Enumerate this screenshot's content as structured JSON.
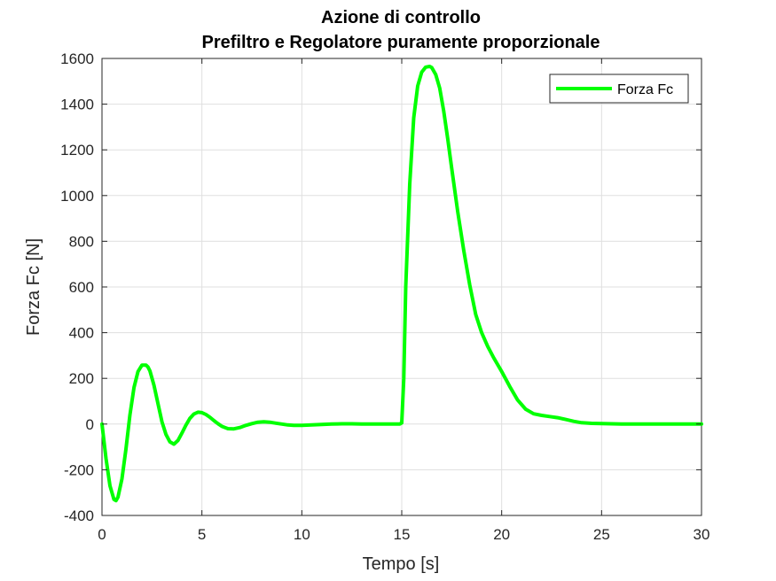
{
  "chart_data": {
    "type": "line",
    "title": "Azione di controllo",
    "subtitle": "Prefiltro e Regolatore puramente proporzionale",
    "xlabel": "Tempo [s]",
    "ylabel": "Forza Fc [N]",
    "xlim": [
      0,
      30
    ],
    "ylim": [
      -400,
      1600
    ],
    "xticks": [
      0,
      5,
      10,
      15,
      20,
      25,
      30
    ],
    "yticks": [
      -400,
      -200,
      0,
      200,
      400,
      600,
      800,
      1000,
      1200,
      1400,
      1600
    ],
    "grid": true,
    "legend": {
      "position": "top-right",
      "entries": [
        "Forza Fc"
      ]
    },
    "series": [
      {
        "name": "Forza Fc",
        "color": "#00ff00",
        "x": [
          0,
          0.2,
          0.4,
          0.6,
          0.7,
          0.8,
          1.0,
          1.2,
          1.4,
          1.6,
          1.8,
          2.0,
          2.2,
          2.3,
          2.4,
          2.6,
          2.8,
          3.0,
          3.2,
          3.4,
          3.6,
          3.8,
          4.0,
          4.2,
          4.4,
          4.6,
          4.8,
          5.0,
          5.2,
          5.4,
          5.6,
          5.8,
          6.0,
          6.3,
          6.6,
          6.9,
          7.2,
          7.5,
          7.8,
          8.1,
          8.4,
          8.7,
          9.0,
          9.3,
          9.6,
          10.0,
          10.5,
          11.0,
          11.5,
          12.0,
          12.5,
          13.0,
          13.5,
          14.0,
          14.5,
          14.9,
          15.0,
          15.1,
          15.2,
          15.4,
          15.6,
          15.8,
          16.0,
          16.2,
          16.4,
          16.5,
          16.7,
          16.9,
          17.1,
          17.3,
          17.5,
          17.8,
          18.1,
          18.4,
          18.7,
          19.0,
          19.3,
          19.6,
          20.0,
          20.4,
          20.8,
          21.2,
          21.6,
          22.0,
          22.4,
          22.8,
          23.2,
          23.6,
          24.0,
          24.5,
          25.0,
          25.5,
          26.0,
          27.0,
          28.0,
          29.0,
          30.0
        ],
        "y": [
          0,
          -150,
          -270,
          -330,
          -335,
          -320,
          -240,
          -110,
          40,
          160,
          230,
          258,
          258,
          250,
          232,
          170,
          90,
          10,
          -45,
          -78,
          -88,
          -72,
          -40,
          -5,
          25,
          44,
          52,
          50,
          42,
          30,
          15,
          2,
          -10,
          -20,
          -21,
          -15,
          -6,
          2,
          8,
          10,
          8,
          4,
          0,
          -4,
          -6,
          -6,
          -4,
          -2,
          0,
          1,
          1,
          0,
          0,
          0,
          0,
          0,
          5,
          200,
          600,
          1050,
          1340,
          1480,
          1540,
          1562,
          1565,
          1560,
          1530,
          1470,
          1370,
          1250,
          1120,
          930,
          760,
          610,
          480,
          400,
          340,
          290,
          230,
          165,
          105,
          65,
          45,
          38,
          33,
          28,
          20,
          12,
          6,
          3,
          2,
          1,
          0,
          0,
          0,
          0,
          0
        ]
      }
    ]
  }
}
